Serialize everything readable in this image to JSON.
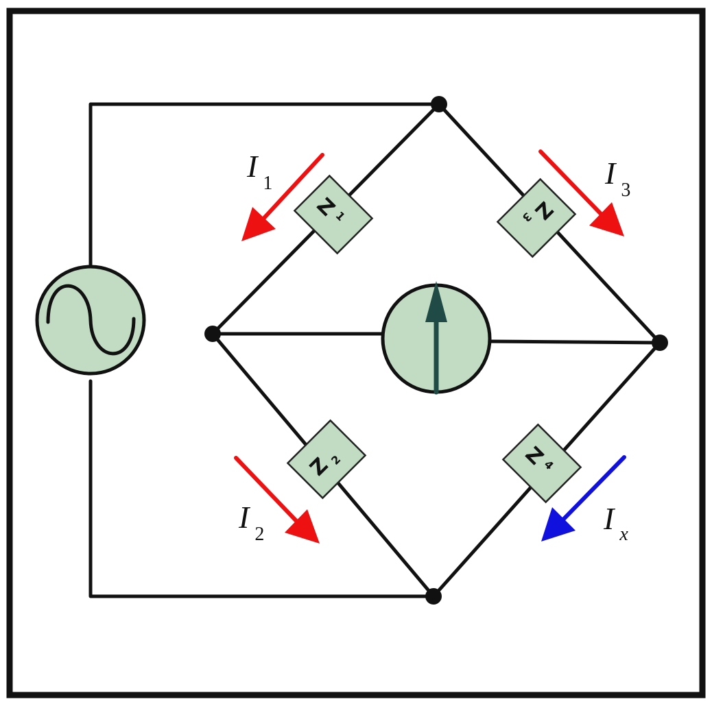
{
  "colors": {
    "component_fill": "#c2dcc4",
    "wire": "#111111",
    "arrow_red": "#ee1111",
    "arrow_blue": "#1111dd",
    "meter_needle": "#1f4a45"
  },
  "source": {
    "icon": "ac-source-sine-icon"
  },
  "meter": {
    "icon": "galvanometer-arrow-icon"
  },
  "impedances": [
    {
      "main": "Z",
      "sub": "1"
    },
    {
      "main": "Z",
      "sub": "2"
    },
    {
      "main": "Z",
      "sub": "3"
    },
    {
      "main": "Z",
      "sub": "4"
    }
  ],
  "currents": [
    {
      "main": "I",
      "sub": "1",
      "color": "#ee1111"
    },
    {
      "main": "I",
      "sub": "2",
      "color": "#ee1111"
    },
    {
      "main": "I",
      "sub": "3",
      "color": "#ee1111"
    },
    {
      "main": "I",
      "sub": "x",
      "color": "#1111dd"
    }
  ]
}
